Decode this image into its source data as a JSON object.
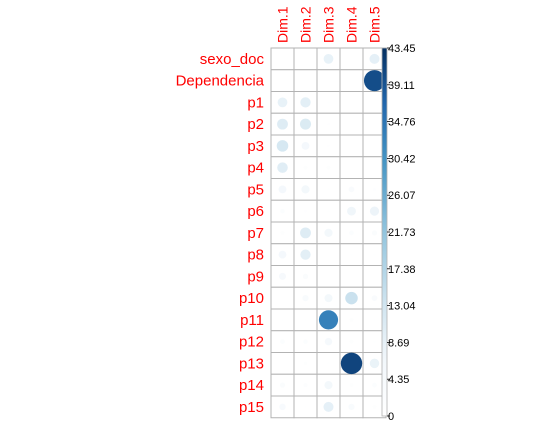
{
  "chart_data": {
    "type": "heatmap",
    "subtype": "corrplot-circle",
    "columns": [
      "Dim.1",
      "Dim.2",
      "Dim.3",
      "Dim.4",
      "Dim.5"
    ],
    "rows": [
      "sexo_doc",
      "Dependencia",
      "p1",
      "p2",
      "p3",
      "p4",
      "p5",
      "p6",
      "p7",
      "p8",
      "p9",
      "p10",
      "p11",
      "p12",
      "p13",
      "p14",
      "p15"
    ],
    "values": [
      [
        0.0,
        0.0,
        8.5,
        0.0,
        9.0
      ],
      [
        0.0,
        0.0,
        0.0,
        0.0,
        40.0
      ],
      [
        8.5,
        9.5,
        0.4,
        0.2,
        0.1
      ],
      [
        10.5,
        11.0,
        0.5,
        0.2,
        0.2
      ],
      [
        12.0,
        5.5,
        0.5,
        0.2,
        0.2
      ],
      [
        10.0,
        1.2,
        1.2,
        0.2,
        0.2
      ],
      [
        5.5,
        6.0,
        0.3,
        3.0,
        0.8
      ],
      [
        1.8,
        0.6,
        0.4,
        7.0,
        7.5
      ],
      [
        1.2,
        10.5,
        6.0,
        2.0,
        2.5
      ],
      [
        5.5,
        9.5,
        0.2,
        0.3,
        0.3
      ],
      [
        4.5,
        2.5,
        0.2,
        0.2,
        0.2
      ],
      [
        0.2,
        3.5,
        5.8,
        14.0,
        3.0
      ],
      [
        0.3,
        0.3,
        33.0,
        1.2,
        0.3
      ],
      [
        2.0,
        1.8,
        5.0,
        1.2,
        0.3
      ],
      [
        0.2,
        1.0,
        0.3,
        41.0,
        8.0
      ],
      [
        2.5,
        1.5,
        6.0,
        1.2,
        2.0
      ],
      [
        3.8,
        0.3,
        9.0,
        3.5,
        1.2
      ]
    ],
    "colorbar": {
      "min": 0,
      "max": 43.45,
      "tick_labels": [
        "0",
        "4.35",
        "8.69",
        "13.04",
        "17.38",
        "21.73",
        "26.07",
        "30.42",
        "34.76",
        "39.11",
        "43.45"
      ],
      "low_color": "#ffffff",
      "high_color": "#053061"
    },
    "grid": true
  }
}
